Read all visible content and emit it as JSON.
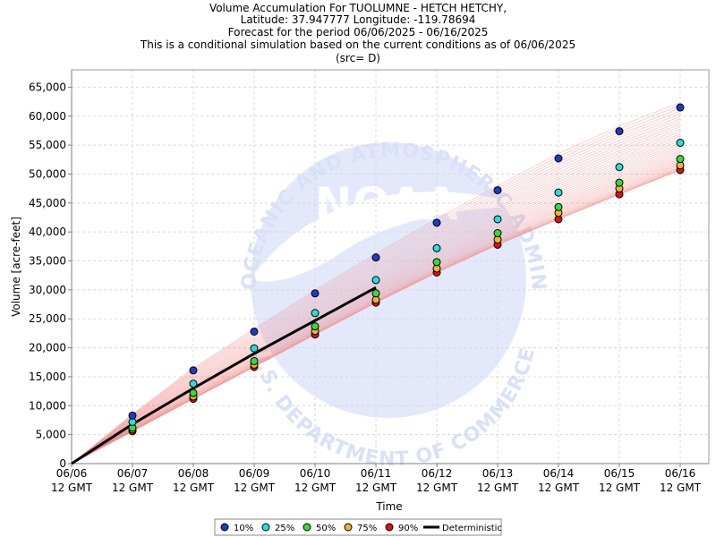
{
  "chart_data": {
    "type": "line",
    "title_lines": [
      "Volume Accumulation For TUOLUMNE - HETCH HETCHY,",
      "Latitude: 37.947777 Longitude: -119.78694",
      "Forecast for the period 06/06/2025 - 06/16/2025",
      "This is a conditional simulation based on the current conditions as of 06/06/2025",
      "(src= D)"
    ],
    "xlabel": "Time",
    "ylabel": "Volume [acre-feet]",
    "x_ticks": [
      "06/06",
      "06/07",
      "06/08",
      "06/09",
      "06/10",
      "06/11",
      "06/12",
      "06/13",
      "06/14",
      "06/15",
      "06/16"
    ],
    "x_tick_sublabel": "12 GMT",
    "ylim": [
      0,
      68000
    ],
    "y_ticks": [
      0,
      5000,
      10000,
      15000,
      20000,
      25000,
      30000,
      35000,
      40000,
      45000,
      50000,
      55000,
      60000,
      65000
    ],
    "y_tick_labels": [
      "0",
      "5,000",
      "10,000",
      "15,000",
      "20,000",
      "25,000",
      "30,000",
      "35,000",
      "40,000",
      "45,000",
      "50,000",
      "55,000",
      "60,000",
      "65,000"
    ],
    "grid": true,
    "series": [
      {
        "name": "10%",
        "color": "#1a3ccc",
        "values": [
          0,
          8300,
          16100,
          22800,
          29400,
          35600,
          41600,
          47200,
          52700,
          57400,
          61500
        ]
      },
      {
        "name": "25%",
        "color": "#22e0e0",
        "values": [
          0,
          7200,
          13800,
          19900,
          26000,
          31700,
          37200,
          42200,
          46800,
          51200,
          55400
        ]
      },
      {
        "name": "50%",
        "color": "#33dd33",
        "values": [
          0,
          6200,
          12200,
          17700,
          23700,
          29400,
          34800,
          39800,
          44300,
          48500,
          52600
        ]
      },
      {
        "name": "75%",
        "color": "#f0b429",
        "values": [
          0,
          5900,
          11600,
          17100,
          22900,
          28300,
          33700,
          38700,
          43300,
          47500,
          51500
        ]
      },
      {
        "name": "90%",
        "color": "#e01010",
        "values": [
          0,
          5600,
          11200,
          16700,
          22300,
          27800,
          33000,
          37800,
          42200,
          46500,
          50700
        ]
      }
    ],
    "deterministic": {
      "name": "Deterministic",
      "color": "#000000",
      "values": [
        0,
        6800,
        13000,
        19000,
        24700,
        30400
      ]
    },
    "ensemble_traces_color": "#f08080",
    "legend_position": "bottom-center",
    "watermark": [
      "NATIONAL OCEANIC AND ATMOSPHERIC ADMINISTRATION",
      "NOAA",
      "U.S. DEPARTMENT OF COMMERCE"
    ]
  }
}
